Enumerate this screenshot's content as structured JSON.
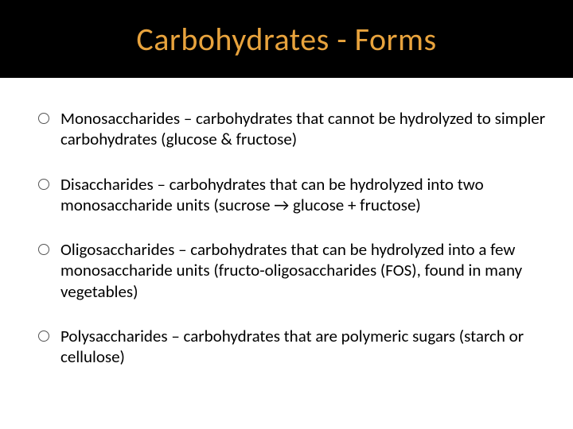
{
  "slide": {
    "title": "Carbohydrates - Forms",
    "title_color": "#e8a33d",
    "title_bg": "#000000",
    "title_fontsize": 40,
    "body_bg": "#ffffff",
    "body_color": "#000000",
    "body_fontsize": 21,
    "bullet_border_color": "#555555",
    "bullets": [
      {
        "text": "Monosaccharides – carbohydrates that cannot be hydrolyzed to simpler carbohydrates (glucose & fructose)"
      },
      {
        "text": "Disaccharides – carbohydrates that can be hydrolyzed into two monosaccharide units (sucrose → glucose + fructose)"
      },
      {
        "text": "Oligosaccharides – carbohydrates that can be hydrolyzed into a few monosaccharide units (fructo-oligosaccharides (FOS), found in many vegetables)"
      },
      {
        "text": "Polysaccharides – carbohydrates that are polymeric sugars (starch or cellulose)"
      }
    ]
  }
}
